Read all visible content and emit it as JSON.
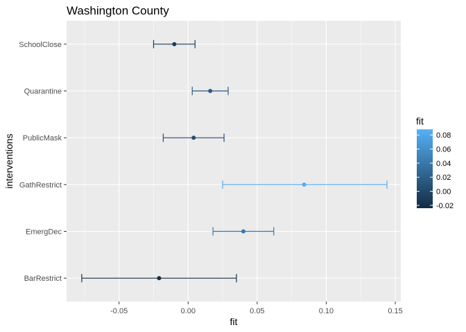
{
  "chart_data": {
    "type": "errorbar",
    "title": "Washington County",
    "xlabel": "fit",
    "ylabel": "interventions",
    "xlim": [
      -0.088,
      0.154
    ],
    "x_ticks": [
      -0.05,
      0.0,
      0.05,
      0.1,
      0.15
    ],
    "x_tick_labels": [
      "-0.05",
      "0.00",
      "0.05",
      "0.10",
      "0.15"
    ],
    "categories": [
      "SchoolClose",
      "Quarantine",
      "PublicMask",
      "GathRestrict",
      "EmergDec",
      "BarRestrict"
    ],
    "points": [
      {
        "label": "SchoolClose",
        "fit": -0.01,
        "lower": -0.025,
        "upper": 0.005
      },
      {
        "label": "Quarantine",
        "fit": 0.016,
        "lower": 0.003,
        "upper": 0.029
      },
      {
        "label": "PublicMask",
        "fit": 0.004,
        "lower": -0.018,
        "upper": 0.026
      },
      {
        "label": "GathRestrict",
        "fit": 0.084,
        "lower": 0.025,
        "upper": 0.144
      },
      {
        "label": "EmergDec",
        "fit": 0.04,
        "lower": 0.018,
        "upper": 0.062
      },
      {
        "label": "BarRestrict",
        "fit": -0.021,
        "lower": -0.077,
        "upper": 0.035
      }
    ],
    "grid": true,
    "legend": {
      "title": "fit",
      "position": "right",
      "range": [
        -0.024,
        0.088
      ],
      "ticks": [
        0.08,
        0.06,
        0.04,
        0.02,
        0.0,
        -0.02
      ],
      "tick_labels": [
        "0.08",
        "0.06",
        "0.04",
        "0.02",
        "0.00",
        "-0.02"
      ],
      "color_low": "#132b43",
      "color_high": "#56b1f7"
    },
    "panel_background": "#ebebeb",
    "grid_color": "#ffffff"
  }
}
